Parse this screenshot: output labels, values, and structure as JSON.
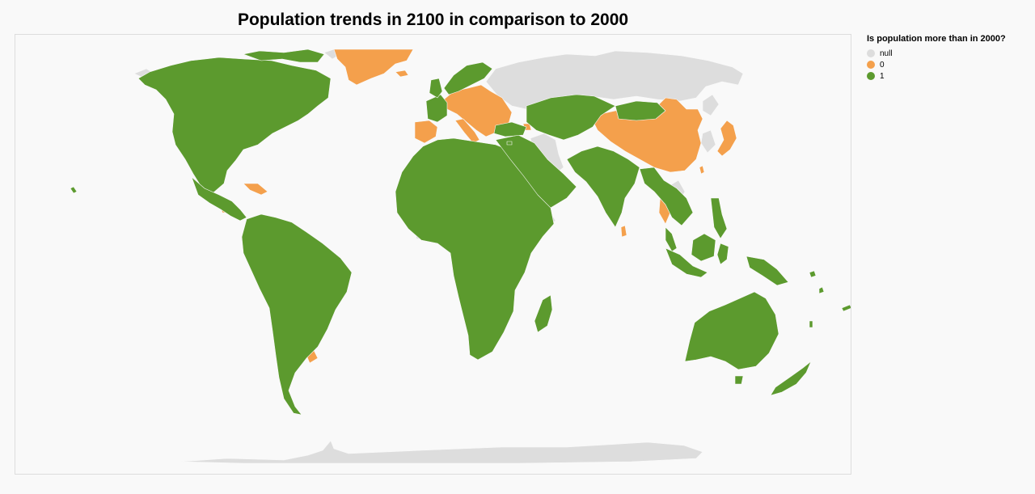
{
  "title": "Population trends in 2100 in comparison to 2000",
  "legend": {
    "title": "Is population more than in 2000?",
    "items": [
      {
        "label": "null",
        "color": "#dddddd"
      },
      {
        "label": "0",
        "color": "#f4a04c"
      },
      {
        "label": "1",
        "color": "#5c9a2e"
      }
    ]
  },
  "colors": {
    "null": "#dddddd",
    "decrease": "#f4a04c",
    "increase": "#5c9a2e",
    "background": "#f9f9f9",
    "border": "#dddddd"
  }
}
